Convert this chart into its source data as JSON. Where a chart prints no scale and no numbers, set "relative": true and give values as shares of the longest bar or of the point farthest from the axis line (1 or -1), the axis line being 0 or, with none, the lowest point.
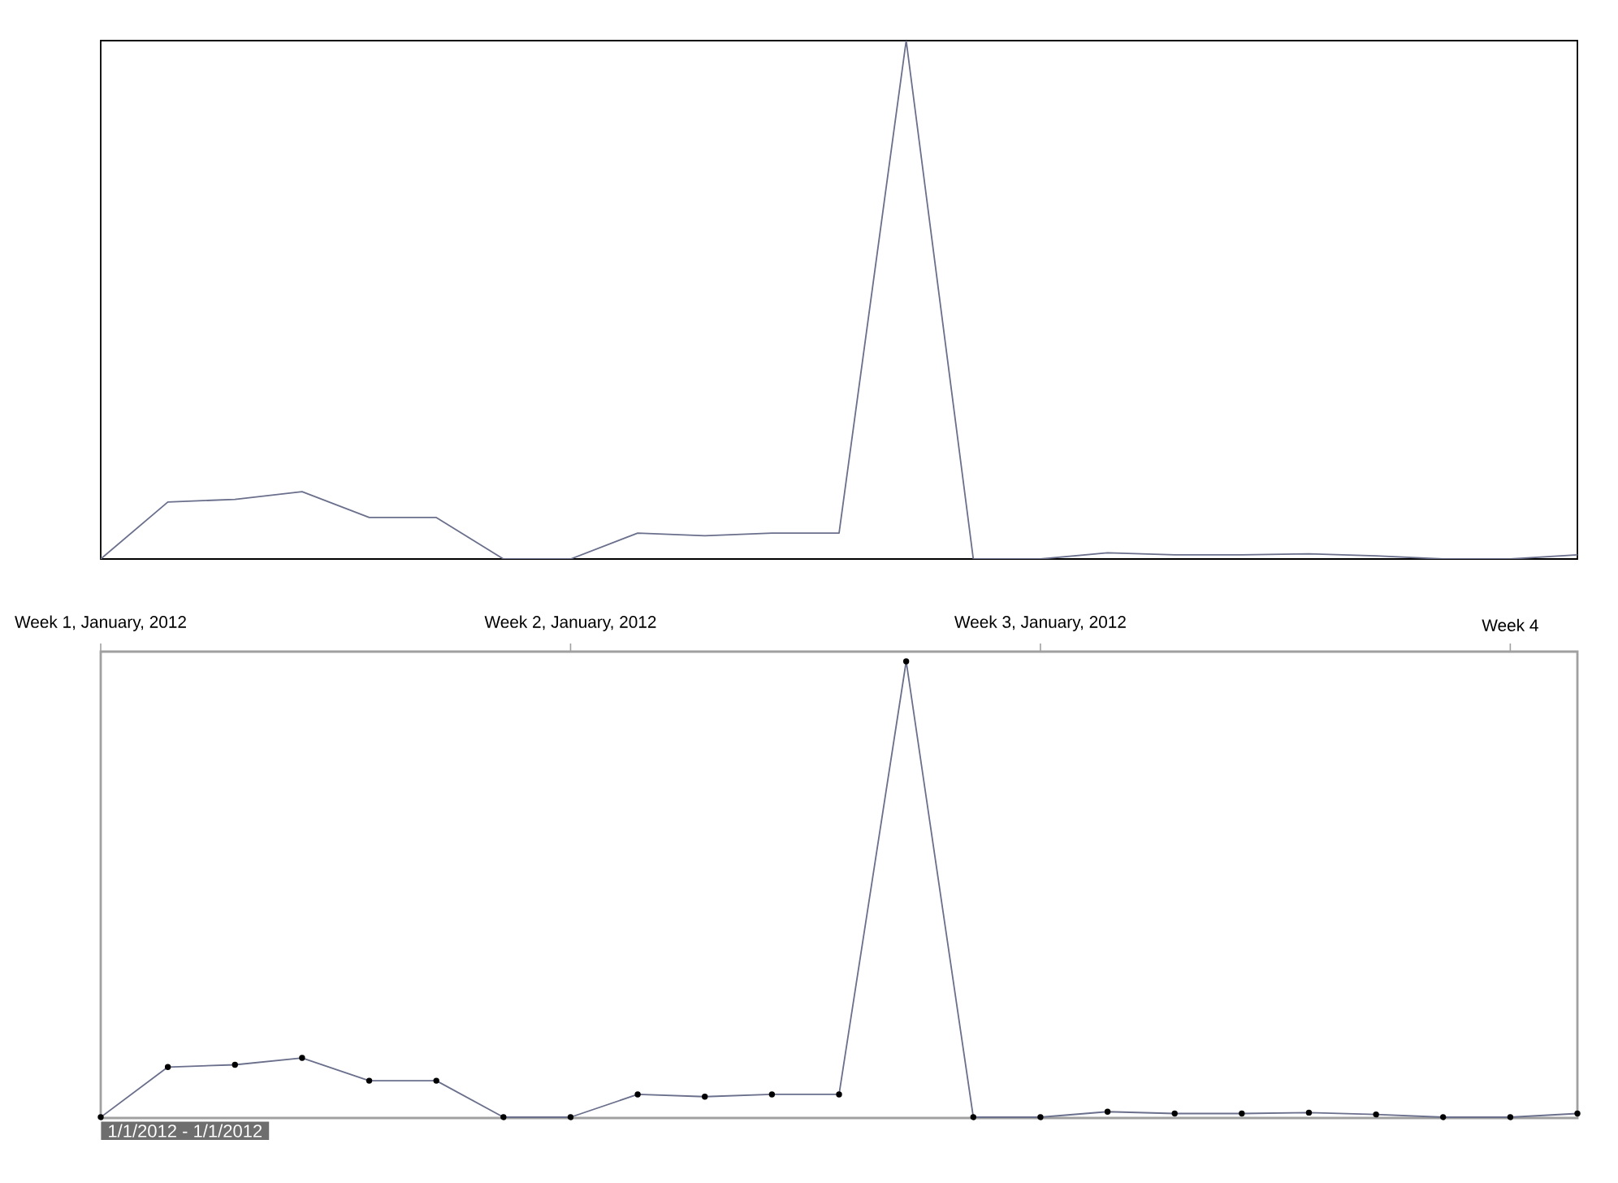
{
  "chart_data": [
    {
      "type": "line",
      "relative": true,
      "categories": [
        null,
        null,
        null,
        null,
        null,
        null,
        null,
        null,
        null,
        null,
        null,
        null,
        null,
        null,
        null,
        null,
        null,
        null,
        null,
        null,
        null,
        null,
        null
      ],
      "series": [
        {
          "color": "#6a6f8c",
          "values": [
            0,
            0.11,
            0.115,
            0.13,
            0.08,
            0.08,
            0,
            0,
            0.05,
            0.045,
            0.05,
            0.05,
            1,
            0,
            0,
            0.012,
            0.008,
            0.008,
            0.01,
            0.006,
            0,
            0,
            0.008
          ]
        }
      ]
    },
    {
      "type": "line",
      "relative": true,
      "categories": [
        "Week 1, January, 2012",
        null,
        null,
        null,
        null,
        null,
        null,
        "Week 2, January, 2012",
        null,
        null,
        null,
        null,
        null,
        null,
        "Week 3, January, 2012",
        null,
        null,
        null,
        null,
        null,
        null,
        "Week 4",
        null
      ],
      "marker": "circle",
      "series": [
        {
          "color": "#6a6f8c",
          "values": [
            0,
            0.11,
            0.115,
            0.13,
            0.08,
            0.08,
            0,
            0,
            0.05,
            0.045,
            0.05,
            0.05,
            1,
            0,
            0,
            0.012,
            0.008,
            0.008,
            0.01,
            0.006,
            0,
            0,
            0.008
          ]
        }
      ],
      "annotations": [
        "1/1/2012 - 1/1/2012"
      ]
    }
  ]
}
